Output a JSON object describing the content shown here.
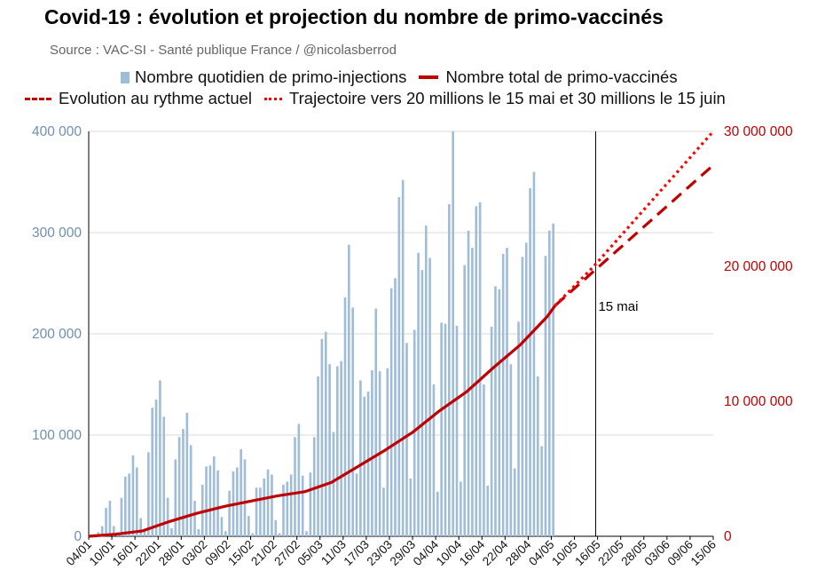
{
  "chart_data": {
    "type": "bar",
    "title": "Covid-19 : évolution et projection du nombre de primo-vaccinés",
    "subtitle": "Source : VAC-SI - Santé publique France / @nicolasberrod",
    "legend": {
      "bars": "Nombre quotidien de primo-injections",
      "total": "Nombre total de primo-vaccinés",
      "current_pace": "Evolution au rythme actuel",
      "trajectory": "Trajectoire vers 20 millions le 15 mai et 30 millions le 15 juin"
    },
    "colors": {
      "bars": "#9fbcd8",
      "total": "#c00000",
      "current_pace": "#c00000",
      "trajectory": "#ff0000",
      "left_axis": "#6d8fb3",
      "right_axis": "#c00000"
    },
    "x_tick_labels": [
      "04/01",
      "10/01",
      "16/01",
      "22/01",
      "28/01",
      "03/02",
      "09/02",
      "15/02",
      "21/02",
      "27/02",
      "05/03",
      "11/03",
      "17/03",
      "23/03",
      "29/03",
      "04/04",
      "10/04",
      "16/04",
      "22/04",
      "28/04",
      "04/05",
      "10/05",
      "16/05",
      "22/05",
      "28/05",
      "03/06",
      "09/06",
      "15/06"
    ],
    "x_range_days": [
      0,
      162
    ],
    "left_axis": {
      "ylim": [
        0,
        400000
      ],
      "ticks": [
        "0",
        "100 000",
        "200 000",
        "300 000",
        "400 000"
      ]
    },
    "right_axis": {
      "ylim": [
        0,
        30000000
      ],
      "ticks": [
        "0",
        "10 000 000",
        "20 000 000",
        "30 000 000"
      ]
    },
    "daily_primo_injections": [
      1000,
      2000,
      4000,
      10000,
      28000,
      35000,
      10000,
      4000,
      38000,
      59000,
      62000,
      80000,
      68000,
      18000,
      6000,
      83000,
      127000,
      135000,
      154000,
      118000,
      38000,
      8000,
      76000,
      98000,
      106000,
      122000,
      90000,
      35000,
      7000,
      51000,
      69000,
      70000,
      79000,
      65000,
      19000,
      5000,
      45000,
      64000,
      68000,
      86000,
      76000,
      20000,
      3000,
      48000,
      48000,
      57000,
      66000,
      61000,
      16000,
      3000,
      51000,
      54000,
      61000,
      98000,
      111000,
      60000,
      5000,
      63000,
      98000,
      158000,
      195000,
      202000,
      170000,
      103000,
      168000,
      173000,
      236000,
      288000,
      226000,
      62000,
      154000,
      138000,
      143000,
      164000,
      225000,
      163000,
      48000,
      166000,
      245000,
      255000,
      335000,
      352000,
      191000,
      57000,
      204000,
      280000,
      263000,
      307000,
      275000,
      150000,
      44000,
      211000,
      210000,
      328000,
      400000,
      208000,
      54000,
      268000,
      302000,
      285000,
      326000,
      330000,
      150000,
      50000,
      207000,
      247000,
      244000,
      279000,
      285000,
      170000,
      67000,
      212000,
      276000,
      290000,
      344000,
      360000,
      158000,
      89000,
      277000,
      302000,
      309000
    ],
    "total_primo_vaccinated": {
      "days": [
        0,
        7,
        14,
        21,
        28,
        35,
        42,
        49,
        56,
        63,
        70,
        77,
        84,
        91,
        98,
        105,
        112,
        119,
        121
      ],
      "values": [
        0,
        150000,
        400000,
        1100000,
        1700000,
        2200000,
        2600000,
        3000000,
        3300000,
        4000000,
        5200000,
        6400000,
        7700000,
        9300000,
        10700000,
        12500000,
        14200000,
        16300000,
        17100000
      ]
    },
    "projection_current_pace": {
      "days": [
        121,
        162
      ],
      "values": [
        17100000,
        27500000
      ]
    },
    "projection_target_trajectory": {
      "days": [
        121,
        131,
        162
      ],
      "values": [
        17100000,
        20000000,
        30000000
      ]
    },
    "annotation": {
      "day": 131,
      "label": "15 mai"
    }
  }
}
